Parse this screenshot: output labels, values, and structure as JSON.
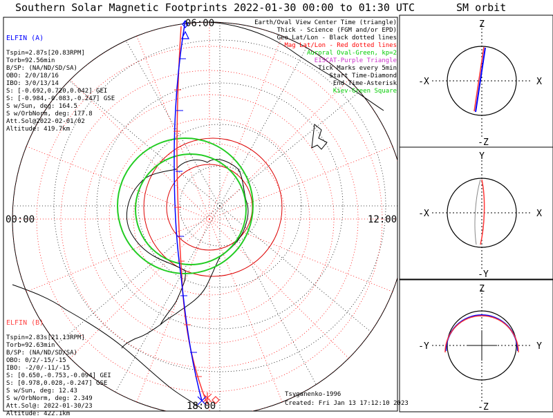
{
  "main_title": "Southern Solar Magnetic Footprints 2022-01-30 00:00 to 01:30 UTC",
  "orbit_title": "SM orbit",
  "map": {
    "lt_top": "06:00",
    "lt_left": "00:00",
    "lt_right": "12:00",
    "lt_bottom": "18:00"
  },
  "legend": {
    "lines": [
      {
        "text": "Earth/Oval View Center Time (triangle)",
        "color": "#000000"
      },
      {
        "text": "Thick - Science (FGM and/or EPD)",
        "color": "#000000"
      },
      {
        "text": "Geo Lat/Lon - Black dotted lines",
        "color": "#000000"
      },
      {
        "text": "Mag Lat/Lon - Red dotted lines",
        "color": "#ff0000"
      },
      {
        "text": "Auroral Oval-Green, kp=2",
        "color": "#00cc00"
      },
      {
        "text": "EISCAT-Purple Triangle",
        "color": "#cc33cc"
      },
      {
        "text": "Tick Marks every 5min",
        "color": "#000000"
      },
      {
        "text": "Start Time-Diamond",
        "color": "#000000"
      },
      {
        "text": "End Time-Asterisk",
        "color": "#000000"
      },
      {
        "text": "Kiev-Green Square",
        "color": "#00cc00"
      }
    ]
  },
  "elfin_a": {
    "name": "ELFIN (A)",
    "color": "#0000ff",
    "lines": [
      "Tspin=2.87s[20.83RPM]",
      "Torb=92.56min",
      "B/SP: (NA/ND/SD/SA)",
      "OBO: 2/0/18/16",
      "IBO: 3/0/13/14",
      "S: [-0.692,0.720,0.042] GEI",
      "S: [-0.984,-0.083,-0.247] GSE",
      "S w/Sun, deg: 164.5",
      "S w/OrbNorm, deg: 177.8",
      "Att.Sol@2022-02-01/02",
      "Altitude: 419.7km"
    ]
  },
  "elfin_b": {
    "name": "ELFIN (B)",
    "color": "#ff4444",
    "lines": [
      "Tspin=2.83s[21.13RPM]",
      "Torb=92.63min",
      "B/SP: (NA/ND/SD/SA)",
      "OBO: 0/2/-15/-15",
      "IBO: -2/0/-11/-15",
      "S: [0.650,-0.753,-0.094] GEI",
      "S: [0.978,0.028,-0.247] GSE",
      "S w/Sun, deg: 12.43",
      "S w/OrbNorm, deg: 2.349",
      "Att.Sol@: 2022-01-30/23",
      "Altitude: 422.1km"
    ]
  },
  "footer": {
    "model": "Tsyganenko-1996",
    "created": "Created: Fri Jan 13 17:12:10 2023"
  },
  "orbit_panels": [
    {
      "top": "Z",
      "bottom": "-Z",
      "left": "-X",
      "right": "X"
    },
    {
      "top": "Y",
      "bottom": "-Y",
      "left": "-X",
      "right": "X"
    },
    {
      "top": "Z",
      "bottom": "-Z",
      "left": "-Y",
      "right": "Y"
    }
  ],
  "chart_data": {
    "type": "polar footprint map",
    "title": "Southern Solar Magnetic Footprints 2022-01-30 00:00 to 01:30 UTC",
    "local_time_labels": [
      "06:00",
      "00:00",
      "12:00",
      "18:00"
    ],
    "tick_interval_min": 5,
    "series": [
      {
        "name": "ELFIN (A)",
        "color": "blue"
      },
      {
        "name": "ELFIN (B)",
        "color": "red"
      }
    ],
    "auroral_oval_kp": 2
  }
}
